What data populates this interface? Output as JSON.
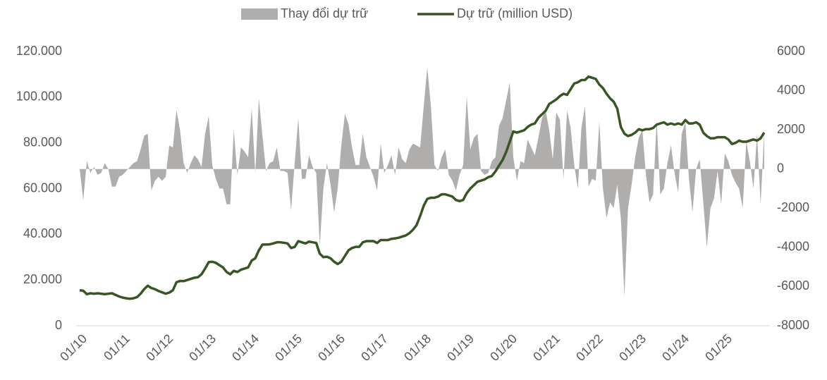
{
  "chart_data": {
    "type": "area-line",
    "categories": [
      "01/10",
      null,
      null,
      null,
      null,
      null,
      null,
      null,
      null,
      null,
      null,
      null,
      "01/11",
      null,
      null,
      null,
      null,
      null,
      null,
      null,
      null,
      null,
      null,
      null,
      "01/12",
      null,
      null,
      null,
      null,
      null,
      null,
      null,
      null,
      null,
      null,
      null,
      "01/13",
      null,
      null,
      null,
      null,
      null,
      null,
      null,
      null,
      null,
      null,
      null,
      "01/14",
      null,
      null,
      null,
      null,
      null,
      null,
      null,
      null,
      null,
      null,
      null,
      "01/15",
      null,
      null,
      null,
      null,
      null,
      null,
      null,
      null,
      null,
      null,
      null,
      "01/16",
      null,
      null,
      null,
      null,
      null,
      null,
      null,
      null,
      null,
      null,
      null,
      "01/17",
      null,
      null,
      null,
      null,
      null,
      null,
      null,
      null,
      null,
      null,
      null,
      "01/18",
      null,
      null,
      null,
      null,
      null,
      null,
      null,
      null,
      null,
      null,
      null,
      "01/19",
      null,
      null,
      null,
      null,
      null,
      null,
      null,
      null,
      null,
      null,
      null,
      "01/20",
      null,
      null,
      null,
      null,
      null,
      null,
      null,
      null,
      null,
      null,
      null,
      "01/21",
      null,
      null,
      null,
      null,
      null,
      null,
      null,
      null,
      null,
      null,
      null,
      "01/22",
      null,
      null,
      null,
      null,
      null,
      null,
      null,
      null,
      null,
      null,
      null,
      "01/23",
      null,
      null,
      null,
      null,
      null,
      null,
      null,
      null,
      null,
      null,
      null,
      "01/24",
      null,
      null,
      null,
      null,
      null,
      null,
      null,
      null,
      null,
      null,
      null,
      "01/25",
      null,
      null,
      null,
      null,
      null,
      null,
      null,
      null,
      null,
      null,
      null
    ],
    "series": [
      {
        "name": "Thay đổi dự trữ",
        "kind": "area",
        "axis": "y2",
        "color": "#b0adad",
        "values": [
          0,
          -1600,
          400,
          -200,
          100,
          -300,
          -200,
          300,
          0,
          -900,
          -900,
          -400,
          -300,
          -100,
          100,
          300,
          400,
          1000,
          1700,
          1800,
          -1100,
          -600,
          -400,
          -600,
          -400,
          1200,
          1100,
          3000,
          2000,
          300,
          -200,
          300,
          700,
          500,
          100,
          1800,
          2700,
          200,
          -500,
          -1000,
          -1000,
          -1800,
          -1800,
          2000,
          -300,
          1100,
          900,
          600,
          3100,
          -200,
          3600,
          1700,
          -100,
          300,
          400,
          1100,
          -100,
          -100,
          -200,
          -2100,
          300,
          2600,
          -500,
          -500,
          700,
          100,
          -200,
          -3900,
          -1000,
          300,
          -800,
          -2200,
          -1000,
          1200,
          2800,
          2300,
          1100,
          200,
          200,
          1800,
          600,
          100,
          -400,
          -1100,
          1300,
          -200,
          200,
          700,
          -300,
          1100,
          500,
          300,
          1000,
          1300,
          1200,
          1100,
          3200,
          5200,
          3200,
          200,
          -100,
          600,
          1000,
          -300,
          -600,
          -1100,
          -300,
          200,
          3700,
          1000,
          1600,
          1800,
          -100,
          -300,
          -200,
          400,
          600,
          2200,
          2600,
          3500,
          4400,
          600,
          -600,
          400,
          300,
          1500,
          1100,
          700,
          1600,
          2600,
          3000,
          2000,
          500,
          2900,
          2500,
          -500,
          3000,
          2100,
          200,
          -1000,
          2100,
          3200,
          -900,
          -500,
          -600,
          2400,
          -1000,
          -2500,
          -1700,
          -2000,
          -800,
          -2500,
          -6500,
          -2000,
          -800,
          600,
          1600,
          2000,
          -300,
          -1700,
          -1300,
          2500,
          -1300,
          -1000,
          300,
          1200,
          -200,
          -1200,
          1800,
          2400,
          -500,
          -2200,
          0,
          500,
          -1700,
          -4000,
          -2000,
          -1500,
          -100,
          -1800,
          800,
          400,
          -300,
          -700,
          -1000,
          -2000,
          1400,
          400,
          -1000,
          1800,
          -1800,
          1900
        ]
      },
      {
        "name": "Dự trữ (million USD)",
        "kind": "line",
        "color": "#375623",
        "values": [
          15500,
          15300,
          13800,
          14200,
          14000,
          14200,
          14000,
          13800,
          14000,
          14200,
          13500,
          12800,
          12300,
          12000,
          11800,
          12000,
          12500,
          14000,
          16000,
          17500,
          16500,
          16000,
          15200,
          14600,
          14000,
          14500,
          15500,
          19000,
          19600,
          19500,
          20000,
          20500,
          21000,
          21200,
          22500,
          25000,
          27800,
          28000,
          27500,
          26500,
          25500,
          23500,
          22500,
          24000,
          23500,
          24500,
          25000,
          25500,
          28500,
          29500,
          33000,
          35500,
          35500,
          35600,
          36000,
          36500,
          36500,
          36300,
          36000,
          34000,
          34500,
          37000,
          36500,
          36000,
          36800,
          36500,
          36200,
          31500,
          30000,
          30200,
          29500,
          28000,
          27000,
          28000,
          30500,
          33000,
          34000,
          34500,
          34500,
          36500,
          37000,
          37000,
          37000,
          36200,
          37500,
          37500,
          37500,
          38000,
          38200,
          38500,
          39000,
          39500,
          40500,
          42000,
          44000,
          48000,
          52500,
          55500,
          56000,
          56000,
          56500,
          57500,
          57500,
          57000,
          56500,
          55000,
          54500,
          55000,
          58000,
          60000,
          61500,
          63000,
          63500,
          64000,
          65000,
          65500,
          67500,
          70000,
          72500,
          76000,
          80500,
          85000,
          84500,
          85000,
          85500,
          87000,
          88000,
          88500,
          91000,
          92500,
          94000,
          97000,
          98000,
          99000,
          100500,
          101500,
          101000,
          103500,
          106000,
          106500,
          107500,
          107500,
          109000,
          108500,
          108000,
          105500,
          104000,
          101500,
          99500,
          98000,
          95000,
          87000,
          84000,
          83000,
          83500,
          84500,
          86000,
          85500,
          86000,
          86000,
          86500,
          88000,
          88500,
          89000,
          88000,
          88500,
          88000,
          88500,
          88000,
          90000,
          88500,
          88500,
          89000,
          88000,
          84500,
          83000,
          82000,
          82000,
          82500,
          82500,
          82500,
          81500,
          79500,
          80000,
          81000,
          80500,
          80500,
          81000,
          81500,
          81000,
          82000,
          84500
        ]
      }
    ],
    "ylim": [
      0,
      120000
    ],
    "yticks": [
      0,
      {
        "value": 20000,
        "label": "20.000"
      },
      {
        "value": 40000,
        "label": "40.000"
      },
      {
        "value": 60000,
        "label": "60.000"
      },
      {
        "value": 80000,
        "label": "80.000"
      },
      {
        "value": 100000,
        "label": "100.000"
      },
      {
        "value": 120000,
        "label": "120.000"
      }
    ],
    "y2lim": [
      -8000,
      6000
    ],
    "y2ticks": [
      -8000,
      -6000,
      -4000,
      -2000,
      0,
      2000,
      4000,
      6000
    ],
    "legend": "top",
    "grid": false
  }
}
